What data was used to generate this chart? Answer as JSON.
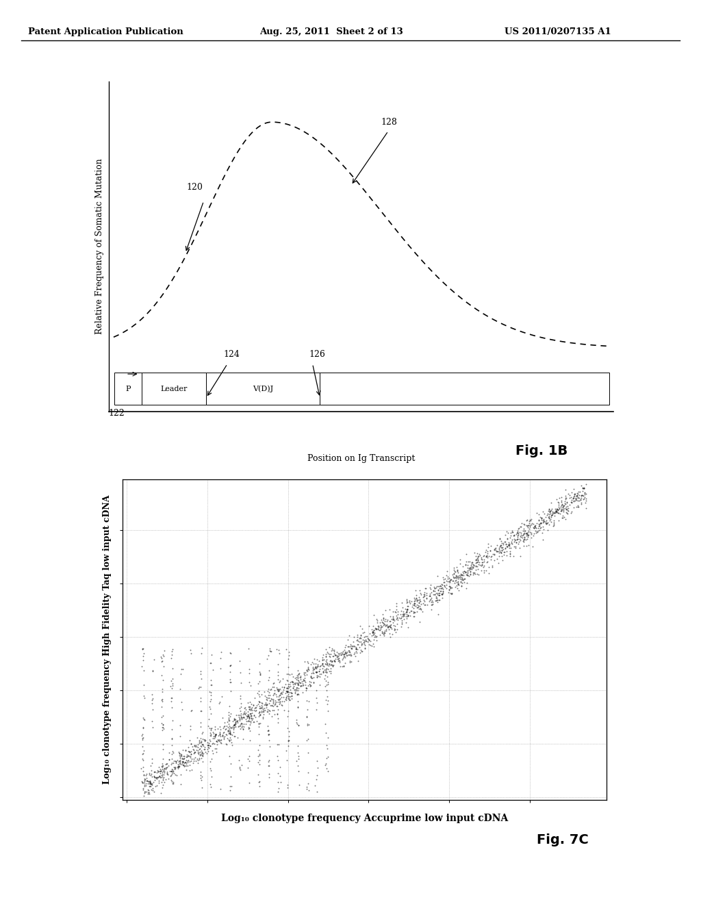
{
  "header_left": "Patent Application Publication",
  "header_mid": "Aug. 25, 2011  Sheet 2 of 13",
  "header_right": "US 2011/0207135 A1",
  "fig1b_ylabel": "Relative Frequency of Somatic Mutation",
  "fig1b_xlabel": "Position on Ig Transcript",
  "fig1b_label": "Fig. 1B",
  "fig7c_xlabel": "Log₁₀ clonotype frequency Accuprime low input cDNA",
  "fig7c_ylabel": "Log₁₀ clonotype frequency High Fidelity Taq low input cDNA",
  "fig7c_label": "Fig. 7C",
  "bg_color": "#ffffff",
  "header_fontsize": 9.5,
  "axis_label_fontsize": 9,
  "fig_label_fontsize": 14,
  "annotation_fontsize": 9
}
